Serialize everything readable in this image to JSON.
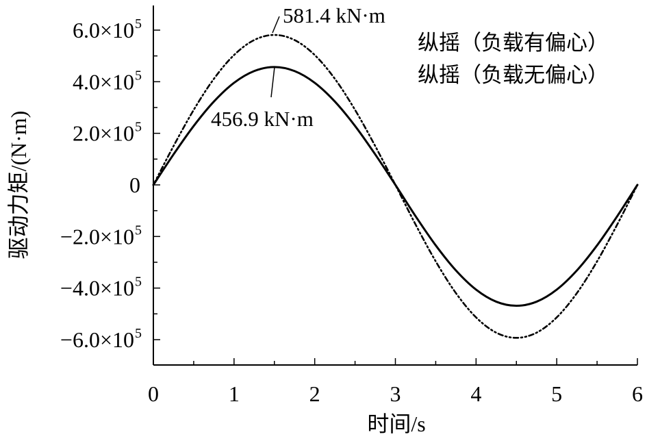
{
  "chart_data": {
    "type": "line",
    "xlabel": "时间/s",
    "ylabel": "驱动力矩/(N·m)",
    "xlim": [
      0,
      6
    ],
    "ylim": [
      -700000.0,
      700000.0
    ],
    "grid": false,
    "legend_position": "top-right",
    "x_ticks": [
      {
        "value": 0,
        "label": "0"
      },
      {
        "value": 1,
        "label": "1"
      },
      {
        "value": 2,
        "label": "2"
      },
      {
        "value": 3,
        "label": "3"
      },
      {
        "value": 4,
        "label": "4"
      },
      {
        "value": 5,
        "label": "5"
      },
      {
        "value": 6,
        "label": "6"
      }
    ],
    "y_ticks": [
      {
        "value": 600000,
        "label": "6.0×10",
        "exp": "5"
      },
      {
        "value": 400000,
        "label": "4.0×10",
        "exp": "5"
      },
      {
        "value": 200000,
        "label": "2.0×10",
        "exp": "5"
      },
      {
        "value": 0,
        "label": "0",
        "exp": ""
      },
      {
        "value": -200000,
        "label": "−2.0×10",
        "exp": "5"
      },
      {
        "value": -400000,
        "label": "−4.0×10",
        "exp": "5"
      },
      {
        "value": -600000,
        "label": "−6.0×10",
        "exp": "5"
      }
    ],
    "series": [
      {
        "name": "纵摇（负载有偏心）",
        "style": "dash-dot-dot",
        "color": "#000000",
        "x": [
          0,
          0.25,
          0.5,
          0.75,
          1.0,
          1.25,
          1.5,
          1.75,
          2.0,
          2.25,
          2.5,
          2.75,
          3.0,
          3.25,
          3.5,
          3.75,
          4.0,
          4.25,
          4.5,
          4.75,
          5.0,
          5.25,
          5.5,
          5.75,
          6.0
        ],
        "y": [
          0,
          150500,
          290700,
          411100,
          503500,
          561600,
          581400,
          561600,
          503500,
          411100,
          290700,
          150500,
          0,
          -153500,
          -296500,
          -419400,
          -513600,
          -572900,
          -593000,
          -572900,
          -513600,
          -419400,
          -296500,
          -153500,
          0
        ]
      },
      {
        "name": "纵摇（负载无偏心）",
        "style": "solid",
        "color": "#000000",
        "x": [
          0,
          0.25,
          0.5,
          0.75,
          1.0,
          1.25,
          1.5,
          1.75,
          2.0,
          2.25,
          2.5,
          2.75,
          3.0,
          3.25,
          3.5,
          3.75,
          4.0,
          4.25,
          4.5,
          4.75,
          5.0,
          5.25,
          5.5,
          5.75,
          6.0
        ],
        "y": [
          0,
          118300,
          228500,
          323100,
          395700,
          441300,
          456900,
          441300,
          395700,
          323100,
          228500,
          118300,
          0,
          -121300,
          -234500,
          -331500,
          -406000,
          -452800,
          -468700,
          -452800,
          -406000,
          -331500,
          -234500,
          -121300,
          0
        ]
      }
    ],
    "annotations": [
      {
        "id": "peak-with",
        "text": "581.4 kN·m",
        "x": 1.5,
        "y": 581400
      },
      {
        "id": "peak-without",
        "text": "456.9 kN·m",
        "x": 1.5,
        "y": 456900
      }
    ]
  }
}
